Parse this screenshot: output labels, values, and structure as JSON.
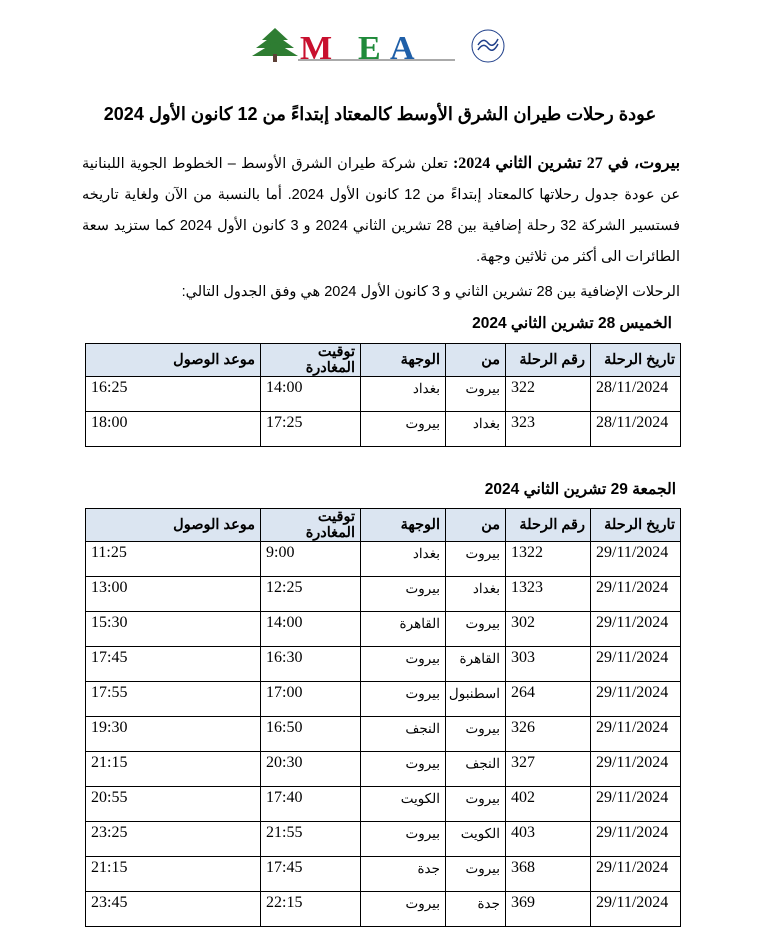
{
  "logo": {
    "text": "MEA",
    "badge": "SKYTEAM"
  },
  "title": "عودة رحلات طيران الشرق الأوسط  كالمعتاد إبتداءً من 12 كانون الأول 2024",
  "paragraph": {
    "lead": "بيروت، في 27 تشرين الثاني 2024:",
    "body": " تعلن شركة طيران الشرق الأوسط – الخطوط الجوية اللبنانية عن عودة جدول رحلاتها كالمعتاد إبتداءً من 12 كانون الأول 2024. أما بالنسبة من الآن ولغاية تاريخه فستسير الشركة 32 رحلة إضافية بين 28 تشرين الثاني 2024 و 3 كانون الأول 2024 كما ستزيد سعة الطائرات الى أكثر من ثلاثين وجهة."
  },
  "intro": "الرحلات الإضافية بين 28 تشرين الثاني  و 3 كانون الأول 2024 هي وفق الجدول التالي:",
  "columns": [
    "تاريخ الرحلة",
    "رقم الرحلة",
    "من",
    "الوجهة",
    "توقيت المغادرة",
    "موعد الوصول"
  ],
  "days": [
    {
      "heading": "الخميس 28 تشرين الثاني 2024",
      "rows": [
        [
          "28/11/2024",
          "322",
          "بيروت",
          "بغداد",
          "14:00",
          "16:25"
        ],
        [
          "28/11/2024",
          "323",
          "بغداد",
          "بيروت",
          "17:25",
          "18:00"
        ]
      ]
    },
    {
      "heading": "الجمعة 29 تشرين الثاني 2024",
      "rows": [
        [
          "29/11/2024",
          "1322",
          "بيروت",
          "بغداد",
          "9:00",
          "11:25"
        ],
        [
          "29/11/2024",
          "1323",
          "بغداد",
          "بيروت",
          "12:25",
          "13:00"
        ],
        [
          "29/11/2024",
          "302",
          "بيروت",
          "القاهرة",
          "14:00",
          "15:30"
        ],
        [
          "29/11/2024",
          "303",
          "القاهرة",
          "بيروت",
          "16:30",
          "17:45"
        ],
        [
          "29/11/2024",
          "264",
          "اسطنبول",
          "بيروت",
          "17:00",
          "17:55"
        ],
        [
          "29/11/2024",
          "326",
          "بيروت",
          "النجف",
          "16:50",
          "19:30"
        ],
        [
          "29/11/2024",
          "327",
          "النجف",
          "بيروت",
          "20:30",
          "21:15"
        ],
        [
          "29/11/2024",
          "402",
          "بيروت",
          "الكويت",
          "17:40",
          "20:55"
        ],
        [
          "29/11/2024",
          "403",
          "الكويت",
          "بيروت",
          "21:55",
          "23:25"
        ],
        [
          "29/11/2024",
          "368",
          "بيروت",
          "جدة",
          "17:45",
          "21:15"
        ],
        [
          "29/11/2024",
          "369",
          "جدة",
          "بيروت",
          "22:15",
          "23:45"
        ]
      ]
    }
  ],
  "colors": {
    "header_bg": "#dbe5f1",
    "logo_red": "#c8102e",
    "logo_green": "#1f8a3a",
    "logo_blue": "#1f5fa8"
  }
}
